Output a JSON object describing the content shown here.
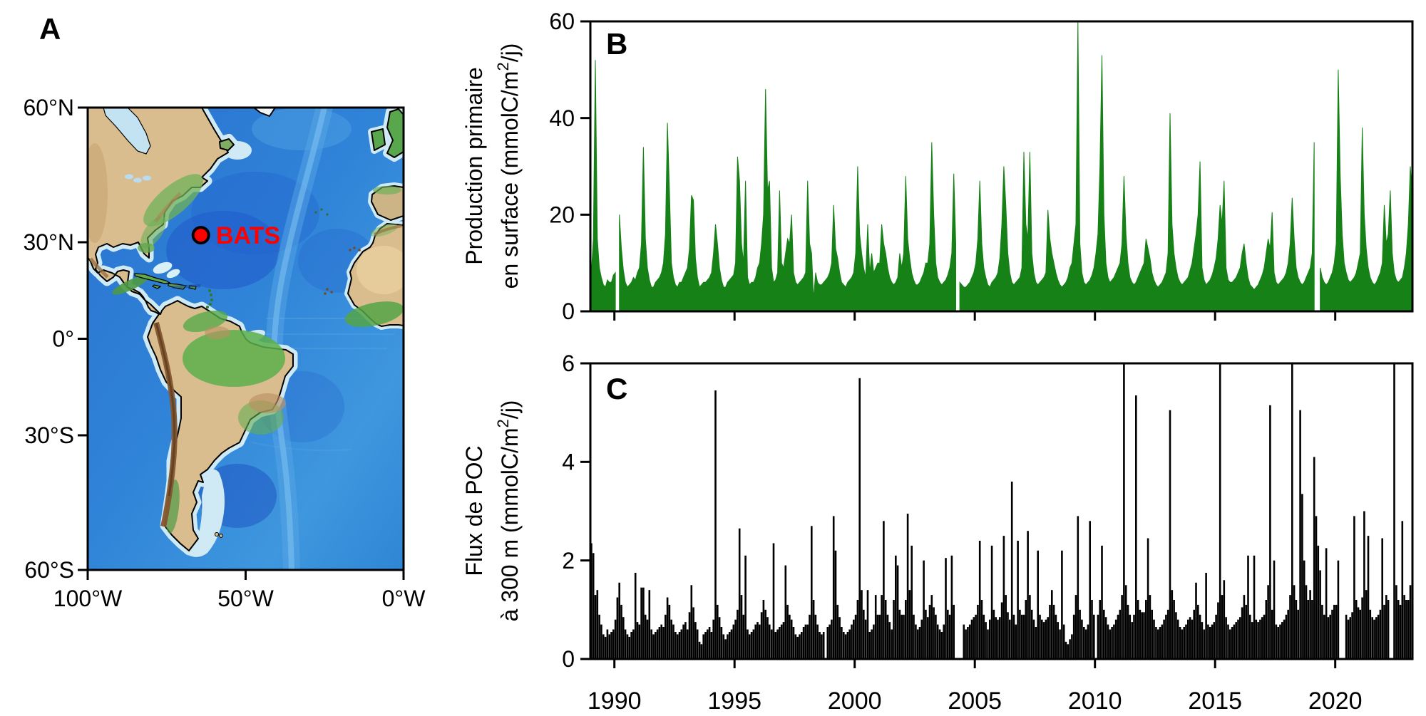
{
  "panel_labels": {
    "a": "A",
    "b": "B",
    "c": "C"
  },
  "map": {
    "station": {
      "name": "BATS",
      "lat": "31.7°N",
      "lon": "64.2°W",
      "marker_color": "#ff0000"
    },
    "y_ticks": [
      "60°N",
      "30°N",
      "0°",
      "30°S",
      "60°S"
    ],
    "x_ticks": [
      "100°W",
      "50°W",
      "0°W"
    ]
  },
  "colors": {
    "production_green": "#168117",
    "poc_black": "#000000",
    "station_red": "#ff0000"
  },
  "chart_data": [
    {
      "panel": "B",
      "type": "area",
      "series_name": "Production primaire en surface",
      "color": "#168117",
      "ylabel_lines": [
        "Production primaire",
        "en surface (mmolC/m²/j)"
      ],
      "ylim": [
        0,
        60
      ],
      "yticks": [
        0,
        20,
        40,
        60
      ],
      "x_range": [
        1989.0,
        2023.3
      ],
      "x_ticks": [
        1990,
        1995,
        2000,
        2005,
        2010,
        2015,
        2020
      ],
      "x_tick_labels_shown": false,
      "sampling": "monthly",
      "units": "mmolC/m2/j",
      "values_by_year": {
        "1989": [
          8,
          15,
          52,
          15,
          9,
          7,
          5.5,
          5,
          6.5,
          6,
          6,
          7.5
        ],
        "1990": [
          8,
          null,
          20,
          13,
          8.5,
          6,
          5,
          5.5,
          6,
          7,
          6.5,
          8
        ],
        "1991": [
          9,
          14,
          34,
          15,
          9,
          6.5,
          5,
          5,
          6,
          6.5,
          7,
          8
        ],
        "1992": [
          10,
          16,
          39,
          25,
          10,
          7,
          5.5,
          5,
          6,
          6,
          7,
          8
        ],
        "1993": [
          9,
          13,
          24,
          23,
          11,
          7,
          5,
          5.5,
          6,
          6,
          6.5,
          7
        ],
        "1994": [
          8,
          12,
          18,
          14,
          9,
          6.5,
          5,
          5,
          6,
          6.5,
          7,
          7.5
        ],
        "1995": [
          10,
          32,
          27,
          14,
          10,
          27,
          7,
          5.5,
          6,
          6,
          7,
          9
        ],
        "1996": [
          10,
          14,
          20,
          46,
          25,
          27,
          9,
          6,
          6.5,
          8,
          25,
          10
        ],
        "1997": [
          9,
          12,
          15,
          14,
          20,
          8,
          6,
          5.5,
          6,
          6.5,
          7,
          8
        ],
        "1998": [
          27,
          14,
          12,
          2.5,
          8,
          6,
          5.5,
          5.5,
          6,
          6.5,
          7,
          8
        ],
        "1999": [
          10,
          22,
          13,
          11,
          8,
          6,
          5.5,
          5,
          6,
          6.5,
          7,
          8
        ],
        "2000": [
          12,
          30,
          16,
          12,
          9,
          7,
          18,
          8,
          12,
          8,
          9,
          10
        ],
        "2001": [
          10,
          18,
          14,
          12,
          9,
          7,
          6,
          5.5,
          6,
          7,
          12,
          9
        ],
        "2002": [
          12,
          28,
          15,
          11,
          8,
          6.5,
          5.5,
          5.5,
          6,
          7,
          8,
          10
        ],
        "2003": [
          10,
          14,
          35,
          20,
          10,
          7,
          6,
          5.5,
          6,
          6.5,
          7.5,
          9
        ],
        "2004": [
          12,
          28.5,
          14,
          null,
          6,
          5.5,
          5,
          5,
          5.5,
          6,
          7,
          8
        ],
        "2005": [
          10,
          15,
          27,
          14,
          9,
          7,
          5.5,
          5,
          6,
          6.5,
          7,
          8
        ],
        "2006": [
          11,
          18,
          30,
          22,
          12,
          8,
          6,
          5.5,
          6,
          6.5,
          7,
          9
        ],
        "2007": [
          33,
          18,
          15,
          33,
          12,
          8,
          6,
          5.5,
          6,
          6.5,
          7,
          8
        ],
        "2008": [
          21,
          15,
          12,
          10,
          8,
          6.5,
          5.5,
          5,
          5.5,
          6,
          7,
          9
        ],
        "2009": [
          10,
          14,
          18,
          60,
          14,
          8,
          6,
          5.5,
          6,
          6.5,
          7.5,
          9
        ],
        "2010": [
          12,
          16,
          30,
          53,
          20,
          10,
          7,
          6,
          6.5,
          7,
          8,
          9
        ],
        "2011": [
          10,
          14,
          28,
          16,
          10,
          7,
          6,
          5.5,
          6,
          7,
          8,
          9
        ],
        "2012": [
          10,
          15,
          13,
          11,
          8,
          6.5,
          5.5,
          5,
          5.5,
          6,
          7,
          8
        ],
        "2013": [
          12,
          41,
          18,
          12,
          9,
          7,
          6,
          5.5,
          6,
          6.5,
          7,
          8.5
        ],
        "2014": [
          10,
          13,
          16,
          20,
          31,
          9,
          6.5,
          5.5,
          6,
          6.5,
          7.5,
          9
        ],
        "2015": [
          11,
          15,
          22,
          18,
          27,
          9,
          6.5,
          6,
          6,
          6.5,
          7,
          8
        ],
        "2016": [
          9,
          12,
          14,
          10,
          7,
          5.5,
          5,
          4.5,
          5,
          5.5,
          6.5,
          7.5
        ],
        "2017": [
          9,
          12,
          15,
          13,
          20.5,
          8,
          6,
          5.5,
          6,
          6.5,
          7,
          8
        ],
        "2018": [
          10,
          14,
          23.5,
          15,
          9,
          7,
          6,
          5.5,
          6,
          7,
          8,
          9
        ],
        "2019": [
          12,
          35,
          null,
          null,
          9,
          7,
          6,
          5.5,
          6,
          7,
          8,
          10
        ],
        "2020": [
          14,
          50,
          28,
          16,
          10,
          8,
          6.5,
          6,
          6.5,
          7,
          8,
          10
        ],
        "2021": [
          12,
          38,
          20,
          13,
          9,
          7,
          6,
          5.5,
          6,
          7,
          8,
          10
        ],
        "2022": [
          22,
          14,
          16,
          25,
          12,
          8,
          6.5,
          6,
          6.5,
          7,
          9,
          12
        ],
        "2023": [
          18,
          30,
          24,
          15
        ]
      }
    },
    {
      "panel": "C",
      "type": "bar",
      "series_name": "Flux de POC à 300 m",
      "color": "#000000",
      "ylabel_lines": [
        "Flux de POC",
        "à 300 m (mmolC/m²/j)"
      ],
      "ylim": [
        0,
        6
      ],
      "yticks": [
        0,
        2,
        4,
        6
      ],
      "x_range": [
        1989.0,
        2023.3
      ],
      "x_ticks": [
        1990,
        1995,
        2000,
        2005,
        2010,
        2015,
        2020
      ],
      "x_tick_labels_shown": true,
      "sampling": "monthly",
      "units": "mmolC/m2/j",
      "values_by_year": {
        "1989": [
          2.35,
          2.15,
          1.3,
          1.4,
          0.9,
          0.7,
          0.5,
          0.45,
          0.6,
          0.5,
          0.55,
          0.6
        ],
        "1990": [
          0.8,
          1.25,
          1.55,
          1.1,
          0.85,
          0.6,
          0.5,
          0.45,
          0.55,
          0.6,
          1.75,
          0.75
        ],
        "1991": [
          0.7,
          1.45,
          1.45,
          0.9,
          0.8,
          1.4,
          0.6,
          0.5,
          0.55,
          0.6,
          0.65,
          0.7
        ],
        "1992": [
          0.65,
          0.9,
          1.25,
          1.1,
          0.8,
          0.7,
          0.55,
          0.5,
          0.55,
          0.6,
          0.7,
          0.75
        ],
        "1993": [
          0.6,
          0.95,
          1.5,
          1.05,
          0.75,
          0.6,
          0.35,
          0.3,
          0.5,
          0.55,
          0.6,
          0.65
        ],
        "1994": [
          0.55,
          0.8,
          5.45,
          1.1,
          0.85,
          0.65,
          0.5,
          0.4,
          0.5,
          0.55,
          0.6,
          0.7
        ],
        "1995": [
          0.8,
          1.0,
          2.65,
          1.3,
          0.9,
          2.1,
          0.6,
          0.5,
          0.55,
          0.6,
          0.7,
          0.75
        ],
        "1996": [
          0.7,
          0.95,
          1.2,
          1.0,
          0.85,
          0.7,
          0.6,
          2.35,
          0.55,
          0.6,
          0.65,
          0.7
        ],
        "1997": [
          0.75,
          1.9,
          1.1,
          0.9,
          0.8,
          0.65,
          0.5,
          0.45,
          0.5,
          0.55,
          0.65,
          0.7
        ],
        "1998": [
          0.7,
          0.9,
          2.7,
          1.2,
          0.9,
          0.7,
          0.55,
          0.5,
          0.55,
          null,
          0.65,
          0.7
        ],
        "1999": [
          0.8,
          2.9,
          2.2,
          1.1,
          0.85,
          0.65,
          0.55,
          0.5,
          0.55,
          0.6,
          0.7,
          0.8
        ],
        "2000": [
          0.9,
          1.2,
          5.7,
          1.4,
          1.0,
          0.8,
          1.4,
          0.55,
          0.6,
          0.7,
          1.3,
          0.9
        ],
        "2001": [
          0.9,
          1.3,
          2.8,
          1.2,
          0.9,
          0.75,
          0.6,
          1.2,
          2.1,
          1.9,
          1.0,
          0.9
        ],
        "2002": [
          0.9,
          1.2,
          2.95,
          1.4,
          2.3,
          0.9,
          0.7,
          0.6,
          0.65,
          0.8,
          2.0,
          1.0
        ],
        "2003": [
          0.85,
          1.1,
          1.3,
          1.05,
          0.9,
          0.7,
          0.6,
          0.55,
          0.7,
          2.05,
          1.0,
          0.9
        ],
        "2004": [
          2.1,
          1.1,
          null,
          null,
          null,
          null,
          0.7,
          0.6,
          0.65,
          0.7,
          0.8,
          0.85
        ],
        "2005": [
          0.9,
          1.1,
          2.4,
          1.2,
          0.9,
          0.75,
          0.6,
          0.8,
          2.3,
          1.0,
          0.85,
          0.8
        ],
        "2006": [
          0.85,
          1.15,
          2.5,
          1.3,
          0.95,
          0.8,
          3.6,
          0.9,
          0.7,
          2.4,
          1.0,
          0.9
        ],
        "2007": [
          0.9,
          1.2,
          2.6,
          1.3,
          1.0,
          0.8,
          0.65,
          2.2,
          0.9,
          0.8,
          0.75,
          0.8
        ],
        "2008": [
          0.85,
          1.1,
          1.4,
          1.1,
          0.9,
          0.75,
          0.6,
          2.2,
          0.7,
          0.35,
          0.3,
          0.4
        ],
        "2009": [
          0.5,
          0.9,
          1.3,
          2.9,
          1.0,
          0.8,
          0.65,
          0.6,
          0.7,
          2.8,
          1.2,
          0.9
        ],
        "2010": [
          null,
          0.9,
          1.2,
          2.3,
          1.0,
          0.85,
          0.7,
          0.6,
          0.65,
          0.7,
          0.8,
          0.9
        ],
        "2011": [
          1.0,
          1.3,
          6.0,
          1.5,
          1.1,
          0.9,
          0.75,
          0.9,
          5.35,
          1.2,
          1.0,
          0.95
        ],
        "2012": [
          0.95,
          1.2,
          2.45,
          1.3,
          1.0,
          0.8,
          0.65,
          0.6,
          0.65,
          0.7,
          0.8,
          0.9
        ],
        "2013": [
          1.0,
          5.05,
          1.4,
          1.2,
          0.95,
          0.8,
          0.65,
          0.6,
          0.65,
          0.7,
          0.8,
          0.85
        ],
        "2014": [
          0.8,
          1.0,
          1.55,
          1.1,
          0.9,
          0.75,
          0.6,
          1.75,
          0.7,
          0.65,
          0.7,
          0.75
        ],
        "2015": [
          0.9,
          1.15,
          6.0,
          1.3,
          1.6,
          0.85,
          0.7,
          0.6,
          0.65,
          0.7,
          0.75,
          0.8
        ],
        "2016": [
          0.85,
          1.05,
          1.3,
          1.1,
          2.1,
          0.9,
          0.75,
          2.1,
          0.8,
          0.75,
          0.8,
          0.85
        ],
        "2017": [
          0.9,
          1.2,
          1.5,
          5.15,
          1.0,
          2.0,
          0.7,
          0.65,
          0.7,
          0.75,
          0.8,
          0.9
        ],
        "2018": [
          1.0,
          1.3,
          6.0,
          1.5,
          1.2,
          1.0,
          5.05,
          3.35,
          2.0,
          1.5,
          1.2,
          1.4
        ],
        "2019": [
          1.2,
          4.1,
          2.9,
          2.3,
          1.8,
          1.1,
          0.9,
          2.25,
          0.85,
          0.9,
          1.0,
          1.1
        ],
        "2020": [
          1.1,
          2.0,
          null,
          null,
          null,
          0.9,
          0.8,
          0.85,
          0.95,
          2.9,
          1.2,
          1.05
        ],
        "2021": [
          1.0,
          1.25,
          3.0,
          1.4,
          2.5,
          1.0,
          0.85,
          0.8,
          0.85,
          0.9,
          1.0,
          2.45
        ],
        "2022": [
          1.1,
          1.3,
          1.2,
          null,
          null,
          6.0,
          1.5,
          1.2,
          1.1,
          2.8,
          1.3,
          1.2
        ],
        "2023": [
          1.2,
          1.5,
          1.1,
          0.9
        ]
      }
    }
  ]
}
